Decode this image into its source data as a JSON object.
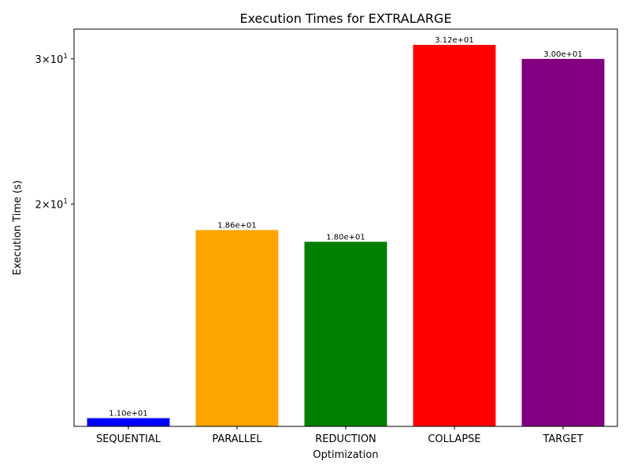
{
  "chart_data": {
    "type": "bar",
    "title": "Execution Times for EXTRALARGE",
    "xlabel": "Optimization",
    "ylabel": "Execution Time (s)",
    "categories": [
      "SEQUENTIAL",
      "PARALLEL",
      "REDUCTION",
      "COLLAPSE",
      "TARGET"
    ],
    "values": [
      11.0,
      18.6,
      18.0,
      31.2,
      30.0
    ],
    "data_labels": [
      "1.10e+01",
      "1.86e+01",
      "1.80e+01",
      "3.12e+01",
      "3.00e+01"
    ],
    "colors": [
      "#0000ff",
      "#ffa500",
      "#008000",
      "#ff0000",
      "#800080"
    ],
    "y_scale": "log",
    "ylim": [
      10.75,
      32.6
    ],
    "y_ticks": [
      {
        "value": 20,
        "mantissa": "2",
        "base": "10",
        "exponent": "1"
      },
      {
        "value": 30,
        "mantissa": "3",
        "base": "10",
        "exponent": "1"
      }
    ],
    "grid": false,
    "legend": "none"
  }
}
